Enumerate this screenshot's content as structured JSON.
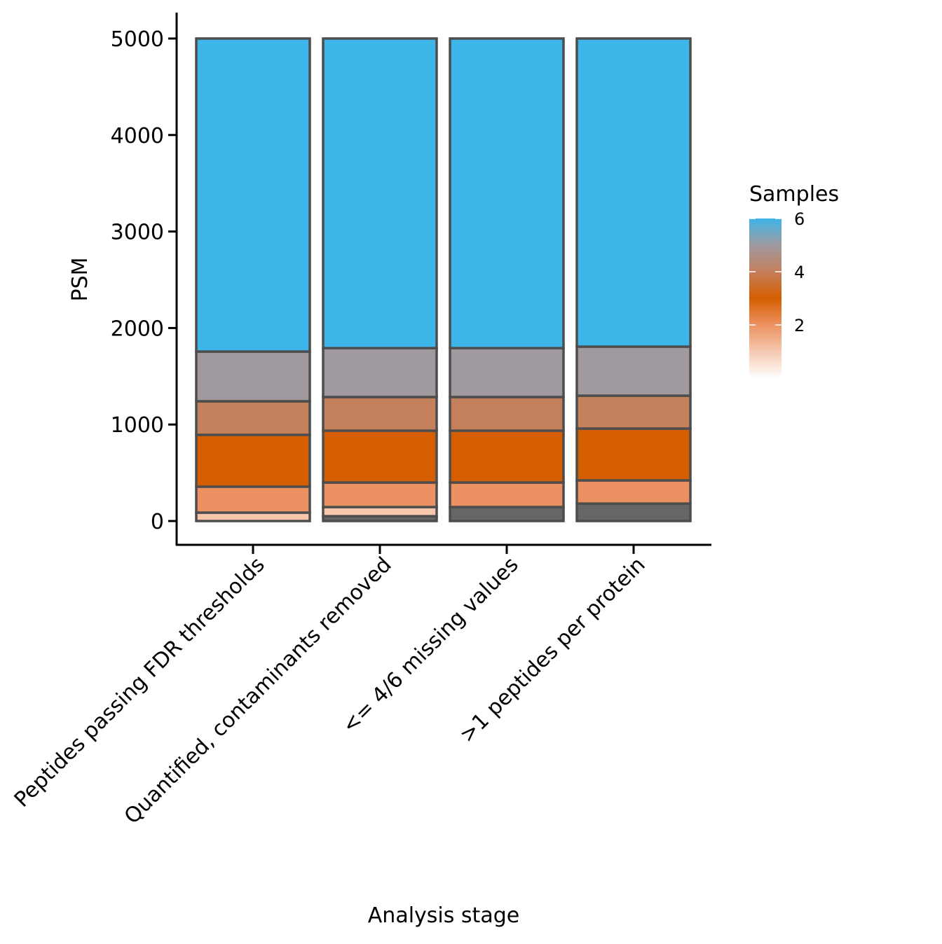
{
  "chart_data": {
    "type": "bar",
    "stacked": true,
    "xlabel": "Analysis stage",
    "ylabel": "PSM",
    "ylim": [
      0,
      5000
    ],
    "yticks": [
      0,
      1000,
      2000,
      3000,
      4000,
      5000
    ],
    "categories": [
      "Peptides passing FDR thresholds",
      "Quantified, contaminants removed",
      "<= 4/6 missing values",
      ">1 peptides per protein"
    ],
    "series": [
      {
        "samples": null,
        "color": "#666666",
        "values": [
          0,
          50,
          145,
          181
        ]
      },
      {
        "samples": 1,
        "color": "#F9C7AB",
        "values": [
          87,
          95,
          0,
          0
        ]
      },
      {
        "samples": 2,
        "color": "#EC9262",
        "values": [
          269,
          254,
          254,
          240
        ]
      },
      {
        "samples": 3,
        "color": "#D55E00",
        "values": [
          537,
          537,
          537,
          537
        ]
      },
      {
        "samples": 4,
        "color": "#C47F5B",
        "values": [
          348,
          349,
          349,
          341
        ]
      },
      {
        "samples": 5,
        "color": "#A09AA0",
        "values": [
          515,
          507,
          507,
          508
        ]
      },
      {
        "samples": 6,
        "color": "#3DB5E8",
        "values": [
          3244,
          3208,
          3208,
          3193
        ]
      }
    ],
    "legend": {
      "title": "Samples",
      "type": "colorbar",
      "range": [
        0,
        6
      ],
      "ticks": [
        "2",
        "4",
        "6"
      ],
      "position": "right"
    },
    "grid": false
  }
}
